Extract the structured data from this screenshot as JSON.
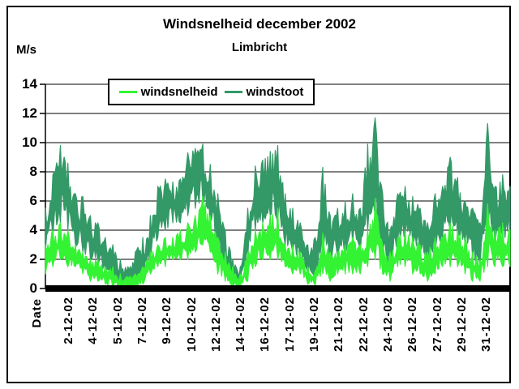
{
  "chart_data": {
    "type": "line",
    "title": "Windsnelheid december 2002",
    "subtitle": "Limbricht",
    "ylabel": "M/s",
    "x_axis_title": "Date",
    "ylim": [
      0,
      14
    ],
    "y_ticks": [
      14,
      12,
      10,
      8,
      6,
      4,
      2,
      0
    ],
    "grid": "horizontal black gridlines every 2 M/s",
    "legend_position": "top inside plot, boxed",
    "x_tick_labels": [
      "2-12-02",
      "4-12-02",
      "5-12-02",
      "7-12-02",
      "9-12-02",
      "10-12-02",
      "12-12-02",
      "14-12-02",
      "16-12-02",
      "17-12-02",
      "19-12-02",
      "21-12-02",
      "22-12-02",
      "24-12-02",
      "26-12-02",
      "27-12-02",
      "29-12-02",
      "31-12-02"
    ],
    "x_domain_days": 31,
    "sampling_note": "High-frequency December 2002 time series drawn as dense jagged bands; values are the readable min/max envelope (M/s) sampled every 0.5 day, t = 0 .. 31 days.",
    "series": [
      {
        "name": "windsnelheid",
        "color": "#33F333",
        "envelope_upper": [
          3,
          4,
          4.5,
          4,
          3,
          2.5,
          2,
          2,
          1.5,
          1.5,
          1,
          0.8,
          1,
          1.5,
          2.5,
          3,
          3.5,
          3.5,
          4,
          4.5,
          5,
          6.3,
          5,
          3.5,
          2.5,
          1.5,
          1,
          2.5,
          4,
          4.5,
          5,
          5.5,
          3,
          3,
          2.5,
          1.5,
          1.2,
          3.8,
          2.5,
          2.5,
          3,
          3.5,
          3,
          4,
          6.2,
          3,
          2.5,
          3.5,
          4,
          3.5,
          3,
          2.5,
          3.5,
          3.5,
          4.5,
          4,
          3.5,
          2.5,
          2,
          5.8,
          4,
          4.5,
          4
        ],
        "envelope_lower": [
          1,
          1.5,
          2,
          1.5,
          1.5,
          1,
          0.5,
          0.5,
          0.3,
          0,
          0,
          0,
          0,
          0.3,
          1,
          1.5,
          1.5,
          2,
          2,
          2,
          2.5,
          3,
          2.5,
          1,
          0.5,
          0,
          0,
          0.5,
          1.5,
          2,
          2,
          2,
          1.5,
          1,
          1,
          0.3,
          0.2,
          1,
          0.5,
          1,
          1,
          1,
          1,
          1.5,
          2,
          1,
          0.5,
          1.5,
          1.5,
          1,
          1,
          0.5,
          1,
          1.5,
          1.5,
          1.5,
          1,
          0.5,
          0.5,
          1.5,
          1.5,
          1.5,
          1.5
        ]
      },
      {
        "name": "windstoot",
        "color": "#339966",
        "envelope_upper": [
          5.5,
          7.8,
          9.8,
          8.6,
          6.5,
          6.3,
          5,
          4.5,
          3.5,
          3,
          2,
          1.5,
          2.5,
          3.5,
          5,
          7,
          7.5,
          7.3,
          7.5,
          9.3,
          9.6,
          9.9,
          8.5,
          6.5,
          4,
          2,
          1.5,
          5.5,
          8.4,
          8.8,
          9.4,
          9.8,
          6.5,
          5.5,
          4.5,
          3,
          3.5,
          8.3,
          5,
          5.5,
          6,
          6.5,
          5.5,
          9.9,
          11.7,
          6.5,
          4,
          6.5,
          7,
          6.3,
          5.5,
          4.5,
          6.5,
          7,
          9,
          7.6,
          6,
          5.5,
          4.5,
          11.3,
          7,
          7.8,
          7
        ],
        "envelope_lower": [
          2.5,
          3.5,
          4.5,
          4,
          3,
          2.5,
          2,
          1.5,
          1,
          0.5,
          0,
          0,
          0,
          0.5,
          2,
          3.5,
          4,
          4.5,
          4.5,
          5,
          5.5,
          6,
          4.5,
          2.5,
          1,
          0,
          0,
          2,
          4,
          4.5,
          5,
          4.5,
          3,
          2.5,
          2,
          1,
          0.5,
          2.5,
          1.5,
          2,
          2.5,
          3,
          2.5,
          4,
          5,
          2,
          1.5,
          3,
          3.5,
          3,
          2.5,
          1.5,
          2.5,
          3.5,
          4,
          3.5,
          3,
          2,
          1.5,
          4,
          3,
          3.5,
          3.5
        ]
      }
    ],
    "colors": {
      "background": "#FFFFFF",
      "axis": "#000000",
      "gridline": "#000000"
    }
  }
}
